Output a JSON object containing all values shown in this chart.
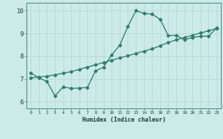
{
  "title": "",
  "xlabel": "Humidex (Indice chaleur)",
  "bg_color": "#cceae7",
  "line_color": "#2e7d72",
  "xlim": [
    -0.5,
    23.5
  ],
  "ylim": [
    5.7,
    10.35
  ],
  "xticks": [
    0,
    1,
    2,
    3,
    4,
    5,
    6,
    7,
    8,
    9,
    10,
    11,
    12,
    13,
    14,
    15,
    16,
    17,
    18,
    19,
    20,
    21,
    22,
    23
  ],
  "yticks": [
    6,
    7,
    8,
    9,
    10
  ],
  "line1_x": [
    0,
    1,
    2,
    3,
    4,
    5,
    6,
    7,
    8,
    9,
    10,
    11,
    12,
    13,
    14,
    15,
    16,
    17,
    18,
    19,
    20,
    21,
    22,
    23
  ],
  "line1_y": [
    7.25,
    7.05,
    6.88,
    6.25,
    6.65,
    6.58,
    6.6,
    6.62,
    7.35,
    7.52,
    8.05,
    8.48,
    9.3,
    10.0,
    9.88,
    9.85,
    9.62,
    8.9,
    8.92,
    8.72,
    8.82,
    8.88,
    8.88,
    9.25
  ],
  "line2_x": [
    0,
    1,
    2,
    3,
    4,
    5,
    6,
    7,
    8,
    9,
    10,
    11,
    12,
    13,
    14,
    15,
    16,
    17,
    18,
    19,
    20,
    21,
    22,
    23
  ],
  "line2_y": [
    7.05,
    7.08,
    7.12,
    7.18,
    7.25,
    7.32,
    7.42,
    7.52,
    7.62,
    7.72,
    7.82,
    7.92,
    8.02,
    8.12,
    8.22,
    8.32,
    8.46,
    8.6,
    8.72,
    8.82,
    8.92,
    9.02,
    9.12,
    9.22
  ],
  "grid_color": "#b8dbd7",
  "marker": "D",
  "markersize": 2.2,
  "linewidth": 1.0
}
